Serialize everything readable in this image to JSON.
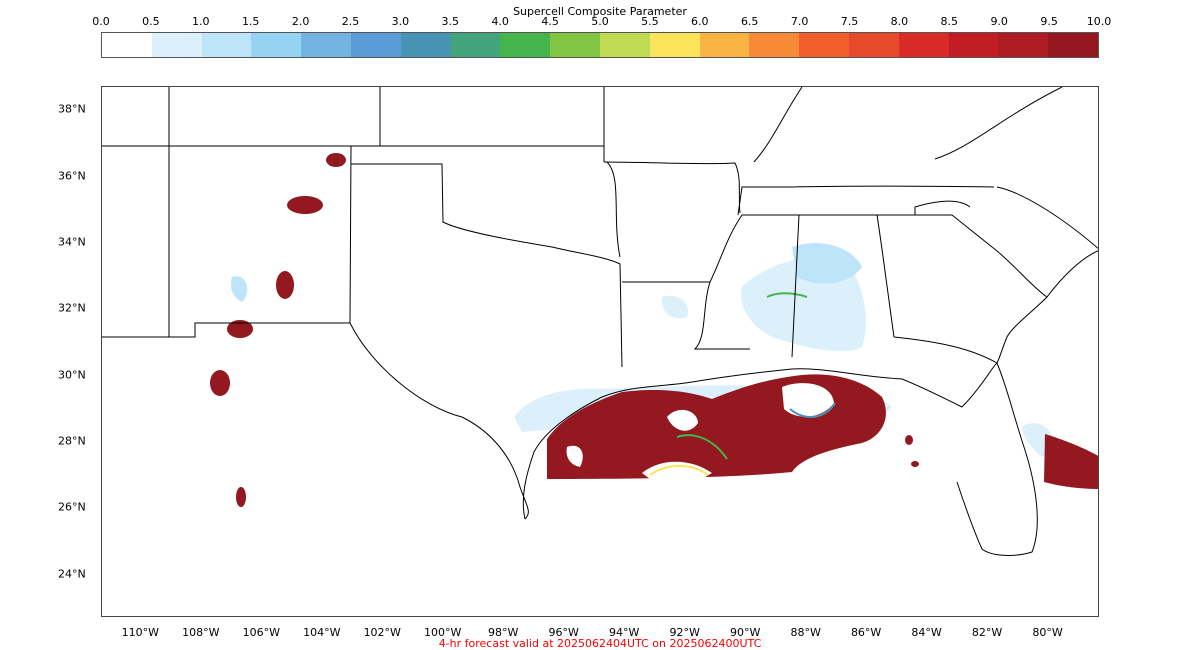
{
  "colorbar": {
    "title": "Supercell Composite Parameter",
    "ticks": [
      "0.0",
      "0.5",
      "1.0",
      "1.5",
      "2.0",
      "2.5",
      "3.0",
      "3.5",
      "4.0",
      "4.5",
      "5.0",
      "5.5",
      "6.0",
      "6.5",
      "7.0",
      "7.5",
      "8.0",
      "8.5",
      "9.0",
      "9.5",
      "10.0"
    ],
    "colors": [
      "#ffffff",
      "#dcf0fc",
      "#bde4f8",
      "#96d2f2",
      "#72b3e2",
      "#5a9cd6",
      "#4793b4",
      "#43a47c",
      "#45b44c",
      "#82c545",
      "#c0da52",
      "#fae55a",
      "#f9b444",
      "#f78a36",
      "#f25f2c",
      "#e64a2a",
      "#da2a28",
      "#c21d24",
      "#ad1b23",
      "#931820"
    ]
  },
  "axes": {
    "lat_labels": [
      "38°N",
      "36°N",
      "34°N",
      "32°N",
      "30°N",
      "28°N",
      "26°N",
      "24°N"
    ],
    "lon_labels": [
      "110°W",
      "108°W",
      "106°W",
      "104°W",
      "102°W",
      "100°W",
      "98°W",
      "96°W",
      "94°W",
      "92°W",
      "90°W",
      "88°W",
      "86°W",
      "84°W",
      "82°W",
      "80°W"
    ]
  },
  "map": {
    "region": "South-central and southeastern United States",
    "extent": {
      "lon_min": -111.3,
      "lon_max": -78.3,
      "lat_min": 22.7,
      "lat_max": 38.7
    },
    "high_value_color": "#931820"
  },
  "footer": {
    "text": "4-hr forecast valid at 2025062404UTC on 2025062400UTC",
    "color": "#ff0000"
  }
}
